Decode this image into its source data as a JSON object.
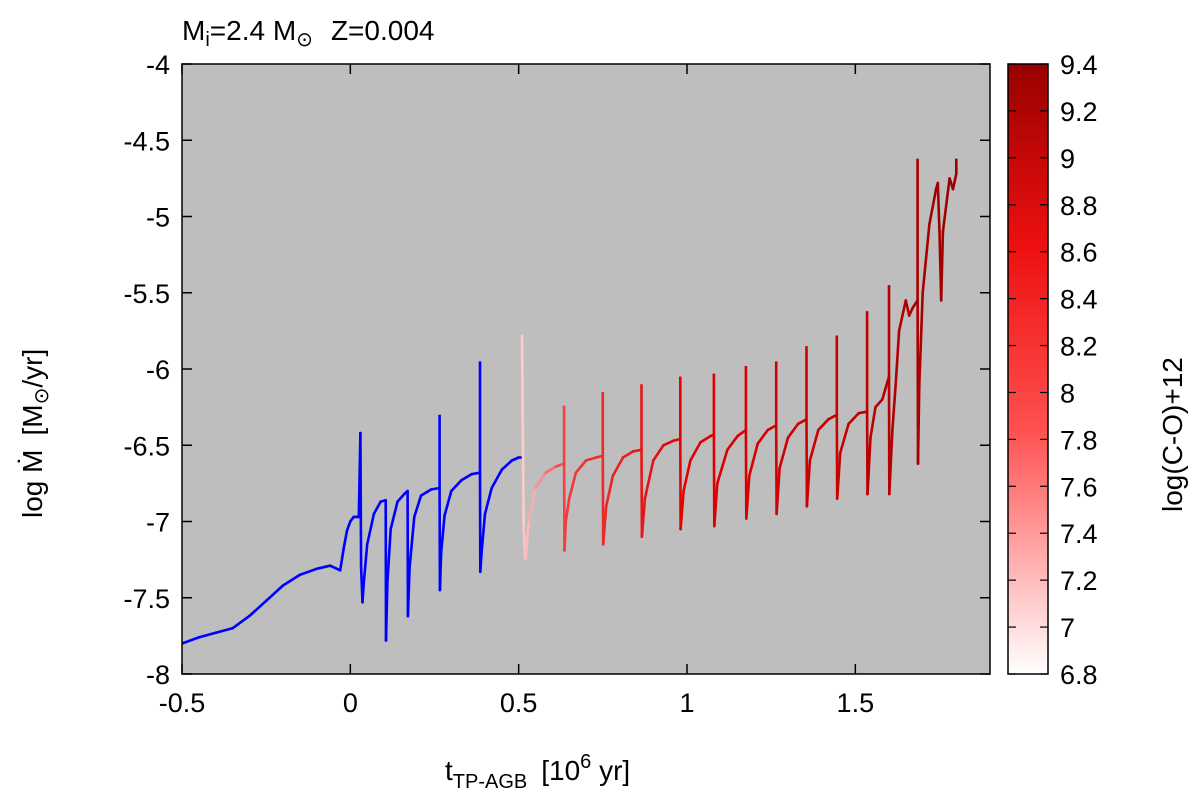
{
  "chart_data": {
    "type": "line",
    "title": {
      "mass_prefix": "M",
      "mass_sub": "i",
      "mass_value": "=2.4 M",
      "sun_symbol": "⊙",
      "metallicity": "Z=0.004"
    },
    "xlabel": {
      "main": "t",
      "sub": "TP-AGB",
      "unit_open": "[10",
      "unit_sup": "6",
      "unit_close": " yr]"
    },
    "ylabel": {
      "main": "log Ṁ",
      "unit_open": "[M",
      "sun_symbol": "⊙",
      "unit_close": "/yr]"
    },
    "colorbar_label": "log(C-O)+12",
    "xlim": [
      -0.5,
      1.9
    ],
    "ylim": [
      -8,
      -4
    ],
    "x_ticks": [
      -0.5,
      0,
      0.5,
      1,
      1.5
    ],
    "x_tick_labels": [
      "-0.5",
      "0",
      "0.5",
      "1",
      "1.5"
    ],
    "y_ticks": [
      -8,
      -7.5,
      -7,
      -6.5,
      -6,
      -5.5,
      -5,
      -4.5,
      -4
    ],
    "y_tick_labels": [
      "-8",
      "-7.5",
      "-7",
      "-6.5",
      "-6",
      "-5.5",
      "-5",
      "-4.5",
      "-4"
    ],
    "colorbar_range": [
      6.8,
      9.4
    ],
    "colorbar_ticks": [
      6.8,
      7,
      7.2,
      7.4,
      7.6,
      7.8,
      8,
      8.2,
      8.4,
      8.6,
      8.8,
      9,
      9.2,
      9.4
    ],
    "colorbar_tick_labels": [
      "6.8",
      "7",
      "7.2",
      "7.4",
      "7.6",
      "7.8",
      "8",
      "8.2",
      "8.4",
      "8.6",
      "8.8",
      "9",
      "9.2",
      "9.4"
    ],
    "colors": {
      "oxygen_rich": "#0000ff",
      "plot_background": "#bebebe",
      "colorbar_low": "#ffffff",
      "colorbar_high": "#990000"
    },
    "grid": false,
    "series": [
      {
        "color_mode": "oxygen_rich",
        "x": [
          -0.5,
          -0.45,
          -0.4,
          -0.35,
          -0.3,
          -0.25,
          -0.2,
          -0.15,
          -0.1,
          -0.06,
          -0.03,
          -0.02,
          -0.01,
          0.0,
          0.01,
          0.02,
          0.025,
          0.03,
          0.032,
          0.036,
          0.04,
          0.05,
          0.07,
          0.09,
          0.105,
          0.106,
          0.11,
          0.12,
          0.14,
          0.16,
          0.17,
          0.171,
          0.176,
          0.19,
          0.21,
          0.24,
          0.265,
          0.266,
          0.27,
          0.28,
          0.3,
          0.33,
          0.36,
          0.385,
          0.386,
          0.39,
          0.4,
          0.42,
          0.45,
          0.48,
          0.5,
          0.51
        ],
        "y": [
          -7.8,
          -7.76,
          -7.73,
          -7.7,
          -7.62,
          -7.52,
          -7.42,
          -7.35,
          -7.31,
          -7.29,
          -7.32,
          -7.18,
          -7.06,
          -7.0,
          -6.97,
          -6.97,
          -6.97,
          -6.42,
          -7.3,
          -7.53,
          -7.4,
          -7.15,
          -6.95,
          -6.87,
          -6.86,
          -7.78,
          -7.4,
          -7.05,
          -6.87,
          -6.82,
          -6.8,
          -7.62,
          -7.3,
          -6.97,
          -6.83,
          -6.79,
          -6.78,
          -7.45,
          -7.2,
          -6.96,
          -6.8,
          -6.73,
          -6.69,
          -6.68,
          -7.33,
          -7.2,
          -6.95,
          -6.78,
          -6.66,
          -6.6,
          -6.58,
          -6.58
        ]
      },
      {
        "color_mode": "carbon_rich",
        "x": [
          0.51,
          0.515,
          0.52,
          0.53,
          0.55,
          0.58,
          0.61,
          0.635,
          0.636,
          0.64,
          0.65,
          0.67,
          0.7,
          0.73,
          0.75,
          0.751,
          0.76,
          0.78,
          0.81,
          0.84,
          0.865,
          0.866,
          0.875,
          0.9,
          0.93,
          0.96,
          0.98,
          0.981,
          0.99,
          1.01,
          1.04,
          1.07,
          1.08,
          1.081,
          1.09,
          1.12,
          1.15,
          1.175,
          1.176,
          1.185,
          1.21,
          1.24,
          1.265,
          1.266,
          1.275,
          1.3,
          1.33,
          1.355,
          1.356,
          1.365,
          1.39,
          1.42,
          1.445,
          1.446,
          1.455,
          1.48,
          1.51,
          1.535,
          1.536,
          1.545,
          1.56,
          1.58,
          1.6,
          1.601,
          1.61,
          1.62,
          1.63,
          1.65,
          1.66,
          1.67,
          1.685,
          1.686,
          1.69,
          1.7,
          1.72,
          1.74,
          1.745,
          1.75,
          1.755,
          1.76,
          1.78,
          1.79,
          1.8
        ],
        "y": [
          -5.78,
          -7.05,
          -7.25,
          -7.0,
          -6.78,
          -6.68,
          -6.64,
          -6.62,
          -7.19,
          -7.0,
          -6.85,
          -6.68,
          -6.6,
          -6.58,
          -6.57,
          -7.15,
          -6.9,
          -6.7,
          -6.58,
          -6.54,
          -6.53,
          -7.1,
          -6.85,
          -6.6,
          -6.5,
          -6.47,
          -6.46,
          -7.05,
          -6.8,
          -6.6,
          -6.48,
          -6.44,
          -6.43,
          -7.03,
          -6.75,
          -6.53,
          -6.44,
          -6.4,
          -6.98,
          -6.7,
          -6.49,
          -6.4,
          -6.37,
          -6.95,
          -6.65,
          -6.45,
          -6.36,
          -6.33,
          -6.9,
          -6.6,
          -6.4,
          -6.33,
          -6.3,
          -6.85,
          -6.55,
          -6.36,
          -6.29,
          -6.28,
          -6.82,
          -6.45,
          -6.25,
          -6.2,
          -6.05,
          -6.82,
          -6.4,
          -6.1,
          -5.75,
          -5.55,
          -5.65,
          -5.6,
          -5.55,
          -6.62,
          -6.1,
          -5.5,
          -5.05,
          -4.82,
          -4.78,
          -5.1,
          -5.55,
          -5.1,
          -4.75,
          -4.82,
          -4.72
        ]
      }
    ],
    "spikes": [
      {
        "x": 0.03,
        "y_top": -6.42
      },
      {
        "x": 0.105,
        "y_top": -6.86
      },
      {
        "x": 0.17,
        "y_top": -6.8
      },
      {
        "x": 0.265,
        "y_top": -6.3
      },
      {
        "x": 0.385,
        "y_top": -5.95
      },
      {
        "x": 0.51,
        "y_top": -5.78
      },
      {
        "x": 0.635,
        "y_top": -6.24
      },
      {
        "x": 0.75,
        "y_top": -6.15
      },
      {
        "x": 0.865,
        "y_top": -6.1
      },
      {
        "x": 0.98,
        "y_top": -6.05
      },
      {
        "x": 1.08,
        "y_top": -6.03
      },
      {
        "x": 1.175,
        "y_top": -5.98
      },
      {
        "x": 1.265,
        "y_top": -5.95
      },
      {
        "x": 1.355,
        "y_top": -5.85
      },
      {
        "x": 1.445,
        "y_top": -5.78
      },
      {
        "x": 1.535,
        "y_top": -5.62
      },
      {
        "x": 1.6,
        "y_top": -5.45
      },
      {
        "x": 1.685,
        "y_top": -4.62
      },
      {
        "x": 1.8,
        "y_top": -4.62
      }
    ],
    "spike_values": {
      "oxygen_rich_end": 0.51
    }
  }
}
